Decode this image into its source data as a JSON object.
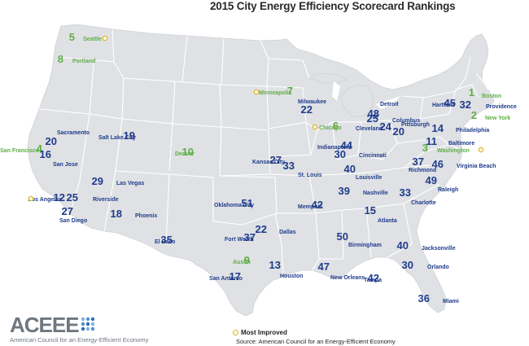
{
  "title": "2015 City Energy Efficiency Scorecard Rankings",
  "legend": {
    "label": "Most Improved",
    "marker_color": "#e1b51e"
  },
  "source": "Source: American Council for an Energy-Efficient Economy",
  "logo": {
    "wordmark": "ACEEE",
    "subtitle": "American Council for an Energy-Efficient Economy"
  },
  "colors": {
    "map_fill": "#dfe1e4",
    "state_border": "#ffffff",
    "rank_blue": "#1f3c8c",
    "rank_green": "#5fae45",
    "improved_marker": "#e1b51e"
  },
  "cities": [
    {
      "name": "Seattle",
      "rank": "5",
      "improved": true
    },
    {
      "name": "Portland",
      "rank": "8",
      "improved": false
    },
    {
      "name": "San Francisco",
      "rank": "4",
      "improved": false
    },
    {
      "name": "Sacramento",
      "rank": "20",
      "improved": false
    },
    {
      "name": "San Jose",
      "rank": "16",
      "improved": false
    },
    {
      "name": "Los Angeles",
      "rank": "12",
      "improved": true
    },
    {
      "name": "Riverside",
      "rank": "25",
      "improved": false
    },
    {
      "name": "San Diego",
      "rank": "27",
      "improved": false
    },
    {
      "name": "Salt Lake City",
      "rank": "19",
      "improved": false
    },
    {
      "name": "Las Vegas",
      "rank": "29",
      "improved": false
    },
    {
      "name": "Phoenix",
      "rank": "18",
      "improved": false
    },
    {
      "name": "Denver",
      "rank": "10",
      "improved": false
    },
    {
      "name": "El Paso",
      "rank": "35",
      "improved": false
    },
    {
      "name": "Minneapolis",
      "rank": "7",
      "improved": true
    },
    {
      "name": "Kansas City",
      "rank": "27",
      "improved": false
    },
    {
      "name": "Oklahoma City",
      "rank": "51",
      "improved": false
    },
    {
      "name": "Fort Worth",
      "rank": "37",
      "improved": false
    },
    {
      "name": "Dallas",
      "rank": "22",
      "improved": false
    },
    {
      "name": "Austin",
      "rank": "9",
      "improved": false
    },
    {
      "name": "San Antonio",
      "rank": "17",
      "improved": false
    },
    {
      "name": "Houston",
      "rank": "13",
      "improved": false
    },
    {
      "name": "Milwaukee",
      "rank": "22",
      "improved": false
    },
    {
      "name": "Chicago",
      "rank": "6",
      "improved": true
    },
    {
      "name": "St. Louis",
      "rank": "33",
      "improved": false
    },
    {
      "name": "Memphis",
      "rank": "42",
      "improved": false
    },
    {
      "name": "New Orleans",
      "rank": "47",
      "improved": false
    },
    {
      "name": "Detroit",
      "rank": "48",
      "improved": false
    },
    {
      "name": "Cleveland",
      "rank": "24",
      "improved": false
    },
    {
      "name": "Indianapolis",
      "rank": "44",
      "improved": false
    },
    {
      "name": "Columbus",
      "rank": "25",
      "improved": false
    },
    {
      "name": "Cincinnati",
      "rank": "30",
      "improved": false
    },
    {
      "name": "Louisville",
      "rank": "40",
      "improved": false
    },
    {
      "name": "Nashville",
      "rank": "39",
      "improved": false
    },
    {
      "name": "Birmingham",
      "rank": "50",
      "improved": false
    },
    {
      "name": "Atlanta",
      "rank": "15",
      "improved": false
    },
    {
      "name": "Pittsburgh",
      "rank": "20",
      "improved": false
    },
    {
      "name": "Philadelphia",
      "rank": "14",
      "improved": false
    },
    {
      "name": "Baltimore",
      "rank": "11",
      "improved": false
    },
    {
      "name": "Washington",
      "rank": "3",
      "improved": true
    },
    {
      "name": "Richmond",
      "rank": "37",
      "improved": false
    },
    {
      "name": "Virginia Beach",
      "rank": "46",
      "improved": false
    },
    {
      "name": "Raleigh",
      "rank": "49",
      "improved": false
    },
    {
      "name": "Charlotte",
      "rank": "33",
      "improved": false
    },
    {
      "name": "Jacksonville",
      "rank": "40",
      "improved": false
    },
    {
      "name": "Orlando",
      "rank": "30",
      "improved": false
    },
    {
      "name": "Tampa",
      "rank": "42",
      "improved": false
    },
    {
      "name": "Miami",
      "rank": "36",
      "improved": false
    },
    {
      "name": "Boston",
      "rank": "1",
      "improved": false
    },
    {
      "name": "New York",
      "rank": "2",
      "improved": false
    },
    {
      "name": "Hartford",
      "rank": "45",
      "improved": false
    },
    {
      "name": "Providence",
      "rank": "32",
      "improved": false
    }
  ]
}
